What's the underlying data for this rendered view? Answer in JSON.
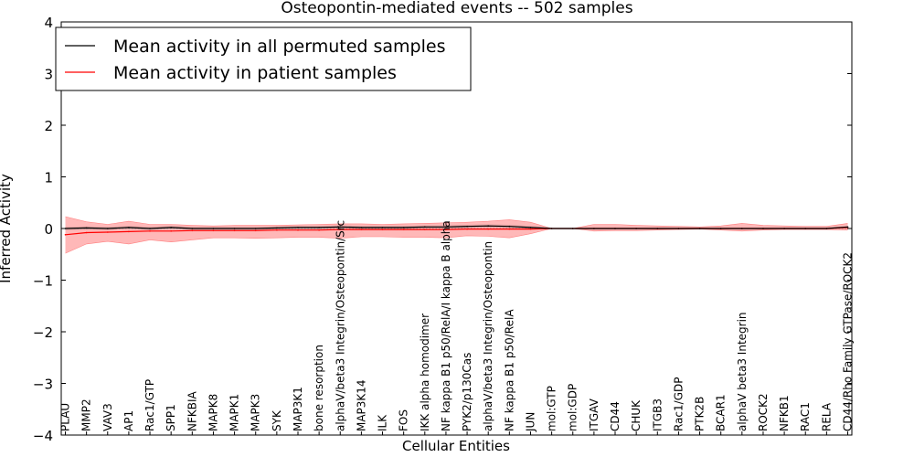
{
  "chart_data": {
    "type": "line",
    "title": "Osteopontin-mediated events -- 502 samples",
    "xlabel": "Cellular Entities",
    "ylabel": "Inferred Activity",
    "ylim": [
      -4,
      4
    ],
    "yticks": [
      -4,
      -3,
      -2,
      -1,
      0,
      1,
      2,
      3,
      4
    ],
    "ytick_labels": [
      "−4",
      "−3",
      "−2",
      "−1",
      "0",
      "1",
      "2",
      "3",
      "4"
    ],
    "legend_position": "top-left",
    "categories": [
      "PLAU",
      "MMP2",
      "VAV3",
      "AP1",
      "Rac1/GTP",
      "SPP1",
      "NFKBIA",
      "MAPK8",
      "MAPK1",
      "MAPK3",
      "SYK",
      "MAP3K1",
      "bone resorption",
      "alphaV/beta3 Integrin/Osteopontin/Src",
      "MAP3K14",
      "ILK",
      "FOS",
      "IKK alpha homodimer",
      "NF kappa B1 p50/RelA/I kappa B alpha",
      "PYK2/p130Cas",
      "alphaV/beta3 Integrin/Osteopontin",
      "NF kappa B1 p50/RelA",
      "JUN",
      "mol:GTP",
      "mol:GDP",
      "ITGAV",
      "CD44",
      "CHUK",
      "ITGB3",
      "Rac1/GDP",
      "PTK2B",
      "BCAR1",
      "alphaV beta3 Integrin",
      "ROCK2",
      "NFKB1",
      "RAC1",
      "RELA",
      "CD44/Rho Family GTPase/ROCK2"
    ],
    "series": [
      {
        "name": "Mean activity in all permuted samples",
        "color": "#000000",
        "style": "solid",
        "values": [
          0.0,
          0.01,
          0.0,
          0.02,
          0.0,
          0.02,
          0.0,
          0.0,
          0.0,
          0.0,
          0.01,
          0.02,
          0.02,
          0.03,
          0.02,
          0.02,
          0.02,
          0.03,
          0.03,
          0.04,
          0.05,
          0.04,
          0.02,
          0.0,
          0.0,
          0.0,
          0.0,
          0.0,
          0.0,
          0.0,
          0.0,
          0.0,
          0.0,
          0.0,
          0.0,
          0.0,
          0.0,
          0.03
        ],
        "band_upper": [
          0.03,
          0.04,
          0.03,
          0.05,
          0.03,
          0.05,
          0.03,
          0.03,
          0.03,
          0.03,
          0.04,
          0.05,
          0.05,
          0.06,
          0.05,
          0.05,
          0.05,
          0.06,
          0.06,
          0.07,
          0.08,
          0.07,
          0.05,
          0.02,
          0.02,
          0.02,
          0.02,
          0.02,
          0.02,
          0.02,
          0.02,
          0.02,
          0.02,
          0.02,
          0.02,
          0.02,
          0.02,
          0.05
        ],
        "band_lower": [
          -0.03,
          -0.02,
          -0.03,
          -0.01,
          -0.03,
          -0.01,
          -0.03,
          -0.03,
          -0.03,
          -0.03,
          -0.02,
          -0.01,
          -0.01,
          0.0,
          -0.01,
          -0.01,
          -0.01,
          0.0,
          0.0,
          0.01,
          0.02,
          0.01,
          -0.01,
          -0.02,
          -0.02,
          -0.02,
          -0.02,
          -0.02,
          -0.02,
          -0.02,
          -0.02,
          -0.02,
          -0.02,
          -0.02,
          -0.02,
          -0.02,
          -0.02,
          0.0
        ]
      },
      {
        "name": "Mean activity in patient samples",
        "color": "#ff0000",
        "style": "solid",
        "values": [
          -0.12,
          -0.08,
          -0.07,
          -0.06,
          -0.05,
          -0.05,
          -0.04,
          -0.04,
          -0.04,
          -0.04,
          -0.03,
          -0.03,
          -0.03,
          -0.02,
          -0.02,
          -0.02,
          -0.02,
          -0.02,
          -0.02,
          -0.01,
          -0.01,
          -0.01,
          -0.01,
          0.0,
          0.0,
          0.0,
          0.0,
          0.0,
          0.0,
          0.0,
          0.0,
          0.0,
          0.0,
          0.0,
          0.0,
          0.0,
          0.0,
          0.02
        ],
        "band_upper": [
          0.23,
          0.13,
          0.08,
          0.14,
          0.08,
          0.08,
          0.06,
          0.05,
          0.06,
          0.06,
          0.06,
          0.07,
          0.08,
          0.09,
          0.09,
          0.08,
          0.09,
          0.1,
          0.11,
          0.12,
          0.14,
          0.17,
          0.12,
          0.0,
          0.0,
          0.08,
          0.08,
          0.06,
          0.05,
          0.04,
          0.03,
          0.05,
          0.1,
          0.06,
          0.05,
          0.04,
          0.04,
          0.1
        ],
        "band_lower": [
          -0.48,
          -0.3,
          -0.25,
          -0.3,
          -0.22,
          -0.26,
          -0.22,
          -0.18,
          -0.18,
          -0.19,
          -0.18,
          -0.17,
          -0.17,
          -0.19,
          -0.16,
          -0.16,
          -0.17,
          -0.17,
          -0.18,
          -0.14,
          -0.15,
          -0.18,
          -0.1,
          0.0,
          0.0,
          -0.05,
          -0.04,
          -0.04,
          -0.03,
          -0.02,
          -0.01,
          -0.03,
          -0.05,
          -0.03,
          -0.02,
          -0.02,
          -0.02,
          -0.03
        ]
      }
    ],
    "zero_line": {
      "color": "#999999",
      "style": "dotted"
    }
  }
}
